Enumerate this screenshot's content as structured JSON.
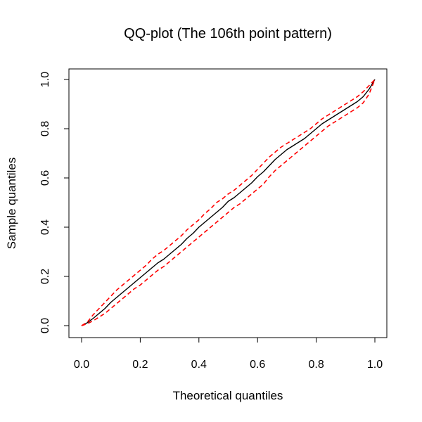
{
  "chart_data": {
    "type": "line",
    "title": "QQ-plot (The 106th point pattern)",
    "xlabel": "Theoretical quantiles",
    "ylabel": "Sample quantiles",
    "xlim": [
      0.0,
      1.0
    ],
    "ylim": [
      0.0,
      1.0
    ],
    "xticks": [
      "0.0",
      "0.2",
      "0.4",
      "0.6",
      "0.8",
      "1.0"
    ],
    "yticks": [
      "0.0",
      "0.2",
      "0.4",
      "0.6",
      "0.8",
      "1.0"
    ],
    "grid": false,
    "series": [
      {
        "role": "sample",
        "color": "#000000",
        "style": "solid",
        "x": [
          0.0,
          0.02,
          0.04,
          0.06,
          0.08,
          0.1,
          0.12,
          0.14,
          0.16,
          0.18,
          0.2,
          0.22,
          0.24,
          0.26,
          0.28,
          0.3,
          0.32,
          0.34,
          0.36,
          0.38,
          0.4,
          0.42,
          0.44,
          0.46,
          0.48,
          0.5,
          0.52,
          0.54,
          0.56,
          0.58,
          0.6,
          0.62,
          0.64,
          0.66,
          0.68,
          0.7,
          0.72,
          0.74,
          0.76,
          0.78,
          0.8,
          0.82,
          0.84,
          0.86,
          0.88,
          0.9,
          0.92,
          0.94,
          0.96,
          0.98,
          1.0
        ],
        "y": [
          0.0,
          0.012,
          0.03,
          0.05,
          0.07,
          0.095,
          0.115,
          0.135,
          0.155,
          0.175,
          0.195,
          0.215,
          0.235,
          0.255,
          0.27,
          0.29,
          0.31,
          0.33,
          0.355,
          0.375,
          0.4,
          0.42,
          0.44,
          0.46,
          0.48,
          0.505,
          0.52,
          0.54,
          0.56,
          0.58,
          0.605,
          0.625,
          0.65,
          0.675,
          0.695,
          0.715,
          0.73,
          0.745,
          0.76,
          0.78,
          0.8,
          0.82,
          0.835,
          0.85,
          0.865,
          0.88,
          0.895,
          0.91,
          0.93,
          0.96,
          1.0
        ]
      },
      {
        "role": "upper envelope",
        "color": "#ff0000",
        "style": "dashed",
        "x": [
          0.0,
          0.02,
          0.04,
          0.06,
          0.08,
          0.1,
          0.12,
          0.14,
          0.16,
          0.18,
          0.2,
          0.22,
          0.24,
          0.26,
          0.28,
          0.3,
          0.32,
          0.34,
          0.36,
          0.38,
          0.4,
          0.42,
          0.44,
          0.46,
          0.48,
          0.5,
          0.52,
          0.54,
          0.56,
          0.58,
          0.6,
          0.62,
          0.64,
          0.66,
          0.68,
          0.7,
          0.72,
          0.74,
          0.76,
          0.78,
          0.8,
          0.82,
          0.84,
          0.86,
          0.88,
          0.9,
          0.92,
          0.94,
          0.96,
          0.98,
          1.0
        ],
        "y": [
          0.0,
          0.015,
          0.045,
          0.07,
          0.095,
          0.12,
          0.145,
          0.165,
          0.185,
          0.205,
          0.225,
          0.245,
          0.27,
          0.29,
          0.305,
          0.325,
          0.345,
          0.365,
          0.39,
          0.41,
          0.43,
          0.455,
          0.475,
          0.5,
          0.515,
          0.535,
          0.55,
          0.57,
          0.59,
          0.61,
          0.635,
          0.66,
          0.685,
          0.705,
          0.725,
          0.74,
          0.755,
          0.77,
          0.785,
          0.8,
          0.82,
          0.84,
          0.855,
          0.87,
          0.885,
          0.9,
          0.915,
          0.93,
          0.95,
          0.975,
          1.0
        ]
      },
      {
        "role": "lower envelope",
        "color": "#ff0000",
        "style": "dashed",
        "x": [
          0.0,
          0.02,
          0.04,
          0.06,
          0.08,
          0.1,
          0.12,
          0.14,
          0.16,
          0.18,
          0.2,
          0.22,
          0.24,
          0.26,
          0.28,
          0.3,
          0.32,
          0.34,
          0.36,
          0.38,
          0.4,
          0.42,
          0.44,
          0.46,
          0.48,
          0.5,
          0.52,
          0.54,
          0.56,
          0.58,
          0.6,
          0.62,
          0.64,
          0.66,
          0.68,
          0.7,
          0.72,
          0.74,
          0.76,
          0.78,
          0.8,
          0.82,
          0.84,
          0.86,
          0.88,
          0.9,
          0.92,
          0.94,
          0.96,
          0.98,
          1.0
        ],
        "y": [
          0.0,
          0.008,
          0.02,
          0.035,
          0.05,
          0.07,
          0.09,
          0.11,
          0.13,
          0.15,
          0.165,
          0.185,
          0.205,
          0.225,
          0.24,
          0.26,
          0.28,
          0.3,
          0.32,
          0.34,
          0.36,
          0.38,
          0.4,
          0.42,
          0.44,
          0.46,
          0.48,
          0.495,
          0.515,
          0.535,
          0.555,
          0.575,
          0.605,
          0.63,
          0.65,
          0.67,
          0.69,
          0.71,
          0.73,
          0.75,
          0.77,
          0.79,
          0.81,
          0.825,
          0.84,
          0.855,
          0.87,
          0.885,
          0.905,
          0.94,
          1.0
        ]
      }
    ]
  }
}
